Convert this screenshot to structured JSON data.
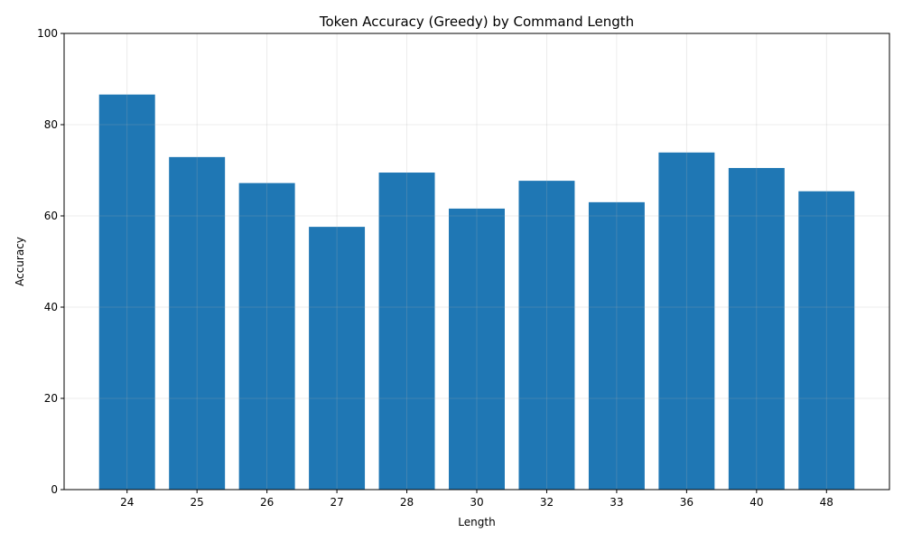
{
  "chart_data": {
    "type": "bar",
    "title": "Token Accuracy (Greedy) by Command Length",
    "xlabel": "Length",
    "ylabel": "Accuracy",
    "categories": [
      "24",
      "25",
      "26",
      "27",
      "28",
      "30",
      "32",
      "33",
      "36",
      "40",
      "48"
    ],
    "values": [
      86.6,
      72.9,
      67.2,
      57.6,
      69.5,
      61.6,
      67.7,
      63.0,
      73.9,
      70.5,
      65.4
    ],
    "ylim": [
      0,
      100
    ],
    "yticks": [
      0,
      20,
      40,
      60,
      80,
      100
    ],
    "grid": true,
    "bar_color": "#1f77b4"
  }
}
